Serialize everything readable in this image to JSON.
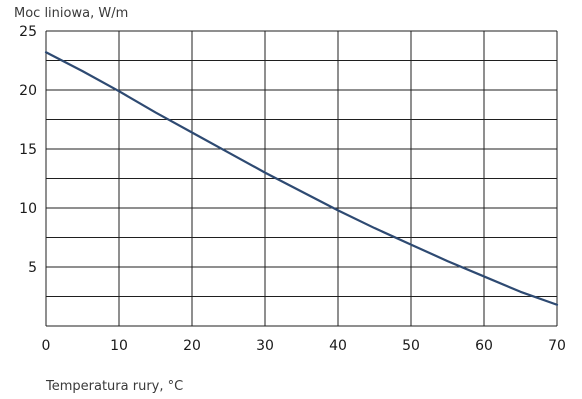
{
  "chart_data": {
    "type": "line",
    "title": "",
    "ylabel": "Moc liniowa, W/m",
    "xlabel": "Temperatura rury, °C",
    "xlim": [
      0,
      70
    ],
    "ylim": [
      0,
      25
    ],
    "x_ticks": [
      0,
      10,
      20,
      30,
      40,
      50,
      60,
      70
    ],
    "y_ticks": [
      5,
      10,
      15,
      20,
      25
    ],
    "y_top_tick_label": "25",
    "grid": true,
    "grid_x_step": 10,
    "grid_y_step": 2.5,
    "series": [
      {
        "color": "#2e4a72",
        "x": [
          0,
          5,
          10,
          15,
          20,
          25,
          30,
          35,
          40,
          45,
          50,
          55,
          60,
          65,
          70
        ],
        "y": [
          23.2,
          21.6,
          19.9,
          18.1,
          16.4,
          14.7,
          13.0,
          11.4,
          9.8,
          8.3,
          6.9,
          5.5,
          4.2,
          2.9,
          1.8
        ]
      }
    ]
  }
}
